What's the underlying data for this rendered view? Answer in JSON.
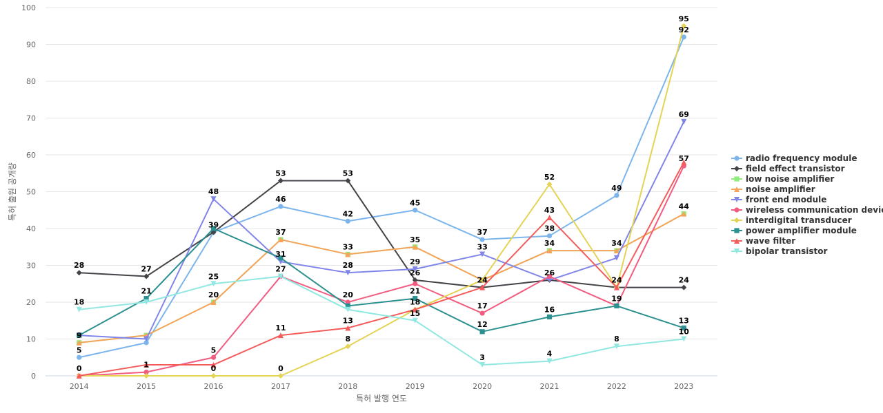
{
  "chart_data": {
    "type": "line",
    "xlabel": "특허 발행 연도",
    "ylabel": "특허 출원 공개량",
    "ylim": [
      0,
      100
    ],
    "yticks": [
      0,
      10,
      20,
      30,
      40,
      50,
      60,
      70,
      80,
      90,
      100
    ],
    "categories": [
      "2014",
      "2015",
      "2016",
      "2017",
      "2018",
      "2019",
      "2020",
      "2021",
      "2022",
      "2023"
    ],
    "grid": "horizontal",
    "legend_position": "right",
    "series": [
      {
        "name": "radio frequency module",
        "values": [
          5,
          9,
          39,
          46,
          42,
          45,
          37,
          38,
          49,
          92
        ],
        "color": "#7cb5ec",
        "marker": "circle",
        "labels_shown": [
          true,
          false,
          false,
          true,
          true,
          true,
          true,
          true,
          true,
          true
        ]
      },
      {
        "name": "field effect transistor",
        "values": [
          28,
          27,
          39,
          53,
          53,
          26,
          24,
          26,
          24,
          24
        ],
        "color": "#434348",
        "marker": "diamond",
        "labels_shown": [
          true,
          true,
          true,
          true,
          true,
          true,
          false,
          false,
          false,
          true
        ]
      },
      {
        "name": "low noise amplifier",
        "values": [
          9,
          11,
          20,
          37,
          33,
          35,
          26,
          34,
          34,
          44
        ],
        "color": "#90ed7d",
        "marker": "square",
        "labels_shown": [
          false,
          false,
          false,
          false,
          false,
          false,
          false,
          false,
          false,
          false
        ]
      },
      {
        "name": "noise amplifier",
        "values": [
          9,
          11,
          20,
          37,
          33,
          35,
          26,
          34,
          34,
          44
        ],
        "color": "#f7a35c",
        "marker": "triangle",
        "labels_shown": [
          true,
          false,
          true,
          true,
          true,
          true,
          false,
          true,
          true,
          true
        ]
      },
      {
        "name": "front end module",
        "values": [
          11,
          10,
          48,
          31,
          28,
          29,
          33,
          26,
          32,
          69
        ],
        "color": "#8085e9",
        "marker": "triangle-down",
        "labels_shown": [
          false,
          false,
          true,
          true,
          true,
          true,
          true,
          true,
          false,
          true
        ]
      },
      {
        "name": "wireless communication device",
        "values": [
          0,
          1,
          5,
          27,
          20,
          25,
          17,
          27,
          19,
          57
        ],
        "color": "#f15c80",
        "marker": "circle",
        "labels_shown": [
          true,
          true,
          true,
          true,
          true,
          false,
          true,
          false,
          true,
          true
        ]
      },
      {
        "name": "interdigital transducer",
        "values": [
          0,
          0,
          0,
          0,
          8,
          18,
          26,
          52,
          24,
          95
        ],
        "color": "#e4d354",
        "marker": "diamond",
        "labels_shown": [
          false,
          false,
          true,
          true,
          true,
          false,
          false,
          true,
          true,
          true
        ]
      },
      {
        "name": "power amplifier module",
        "values": [
          11,
          21,
          40,
          32,
          19,
          21,
          12,
          16,
          19,
          13
        ],
        "color": "#2b908f",
        "marker": "square",
        "labels_shown": [
          false,
          true,
          false,
          false,
          false,
          true,
          true,
          true,
          false,
          true
        ]
      },
      {
        "name": "wave filter",
        "values": [
          0,
          3,
          3,
          11,
          13,
          18,
          24,
          43,
          24,
          58
        ],
        "color": "#f45b5b",
        "marker": "triangle",
        "labels_shown": [
          false,
          false,
          false,
          true,
          true,
          true,
          true,
          true,
          false,
          false
        ]
      },
      {
        "name": "bipolar transistor",
        "values": [
          18,
          20,
          25,
          27,
          18,
          15,
          3,
          4,
          8,
          10
        ],
        "color": "#91e8e1",
        "marker": "triangle-down",
        "labels_shown": [
          true,
          false,
          true,
          false,
          false,
          true,
          true,
          true,
          true,
          true
        ]
      }
    ]
  }
}
